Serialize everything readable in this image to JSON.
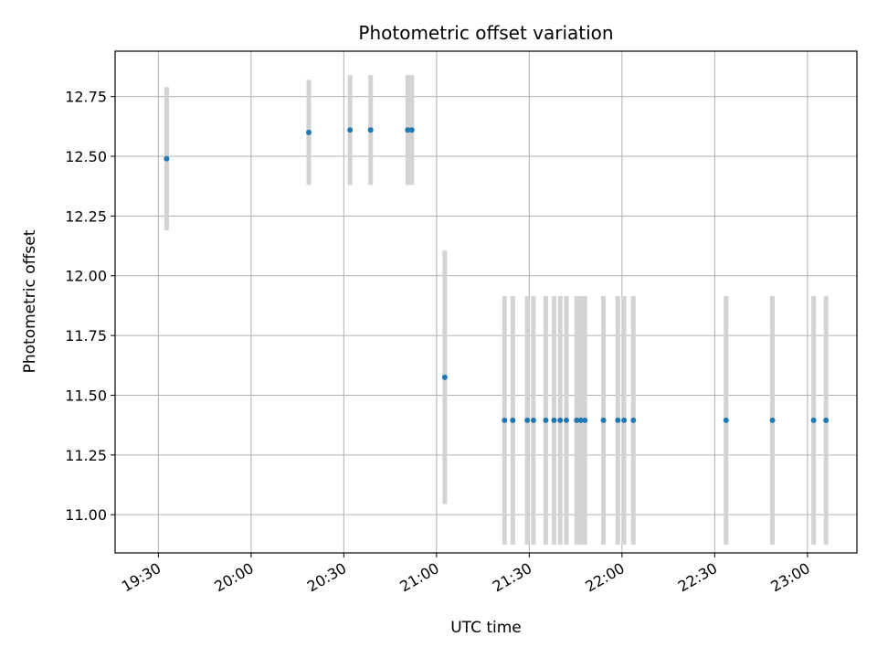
{
  "chart_data": {
    "type": "scatter",
    "title": "Photometric offset variation",
    "xlabel": "UTC time",
    "ylabel": "Photometric offset",
    "x_unit": "minutes after 19:30 UTC",
    "xlim": [
      "19:16",
      "23:16"
    ],
    "ylim": [
      10.84,
      12.94
    ],
    "x_ticks": [
      "19:30",
      "20:00",
      "20:30",
      "21:00",
      "21:30",
      "22:00",
      "22:30",
      "23:00"
    ],
    "y_ticks": [
      "11.00",
      "11.25",
      "11.50",
      "11.75",
      "12.00",
      "12.25",
      "12.50",
      "12.75"
    ],
    "grid": true,
    "point_color": "#1f77b4",
    "errorbar_color": "#d3d3d3",
    "points": [
      {
        "x": "19:32:40",
        "y": 12.49,
        "err": 0.3
      },
      {
        "x": "20:18:40",
        "y": 12.6,
        "err": 0.22
      },
      {
        "x": "20:32:00",
        "y": 12.61,
        "err": 0.23
      },
      {
        "x": "20:38:40",
        "y": 12.61,
        "err": 0.23
      },
      {
        "x": "20:50:40",
        "y": 12.61,
        "err": 0.23
      },
      {
        "x": "20:52:00",
        "y": 12.61,
        "err": 0.23
      },
      {
        "x": "21:02:40",
        "y": 11.575,
        "err": 0.53
      },
      {
        "x": "21:22:00",
        "y": 11.395,
        "err": 0.52
      },
      {
        "x": "21:24:40",
        "y": 11.395,
        "err": 0.52
      },
      {
        "x": "21:29:20",
        "y": 11.395,
        "err": 0.52
      },
      {
        "x": "21:31:20",
        "y": 11.395,
        "err": 0.52
      },
      {
        "x": "21:35:20",
        "y": 11.395,
        "err": 0.52
      },
      {
        "x": "21:38:00",
        "y": 11.395,
        "err": 0.52
      },
      {
        "x": "21:40:00",
        "y": 11.395,
        "err": 0.52
      },
      {
        "x": "21:42:00",
        "y": 11.395,
        "err": 0.52
      },
      {
        "x": "21:45:20",
        "y": 11.395,
        "err": 0.52
      },
      {
        "x": "21:46:40",
        "y": 11.395,
        "err": 0.52
      },
      {
        "x": "21:48:00",
        "y": 11.395,
        "err": 0.52
      },
      {
        "x": "21:54:00",
        "y": 11.395,
        "err": 0.52
      },
      {
        "x": "21:58:40",
        "y": 11.395,
        "err": 0.52
      },
      {
        "x": "22:00:40",
        "y": 11.395,
        "err": 0.52
      },
      {
        "x": "22:03:40",
        "y": 11.395,
        "err": 0.52
      },
      {
        "x": "22:33:40",
        "y": 11.395,
        "err": 0.52
      },
      {
        "x": "22:48:40",
        "y": 11.395,
        "err": 0.52
      },
      {
        "x": "23:02:00",
        "y": 11.395,
        "err": 0.52
      },
      {
        "x": "23:06:00",
        "y": 11.395,
        "err": 0.52
      }
    ]
  }
}
